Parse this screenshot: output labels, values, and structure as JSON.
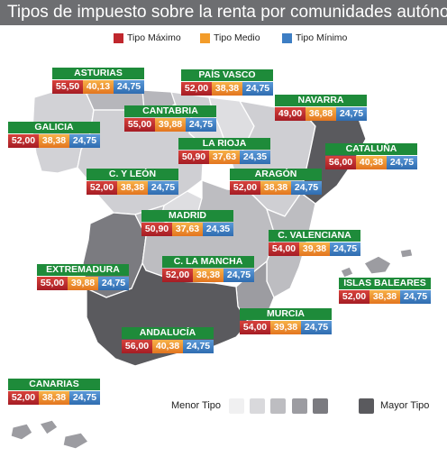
{
  "title": "Tipos de impuesto sobre la renta por comunidades autónomas",
  "legend": {
    "max_label": "Tipo Máximo",
    "med_label": "Tipo Medio",
    "min_label": "Tipo Mínimo"
  },
  "colors": {
    "max": "#c0272d",
    "med": "#f39c2a",
    "min": "#3d7ec4",
    "name_bg": "#1e8b3a"
  },
  "regions": [
    {
      "name": "ASTURIAS",
      "max": "55,50",
      "med": "40,13",
      "min": "24,75"
    },
    {
      "name": "PAÍS VASCO",
      "max": "52,00",
      "med": "38,38",
      "min": "24,75"
    },
    {
      "name": "CANTABRIA",
      "max": "55,00",
      "med": "39,88",
      "min": "24,75"
    },
    {
      "name": "NAVARRA",
      "max": "49,00",
      "med": "36,88",
      "min": "24,75"
    },
    {
      "name": "GALICIA",
      "max": "52,00",
      "med": "38,38",
      "min": "24,75"
    },
    {
      "name": "LA RIOJA",
      "max": "50,90",
      "med": "37,63",
      "min": "24,35"
    },
    {
      "name": "CATALUÑA",
      "max": "56,00",
      "med": "40,38",
      "min": "24,75"
    },
    {
      "name": "C. Y LEÓN",
      "max": "52,00",
      "med": "38,38",
      "min": "24,75"
    },
    {
      "name": "ARAGÓN",
      "max": "52,00",
      "med": "38,38",
      "min": "24,75"
    },
    {
      "name": "MADRID",
      "max": "50,90",
      "med": "37,63",
      "min": "24,35"
    },
    {
      "name": "C. VALENCIANA",
      "max": "54,00",
      "med": "39,38",
      "min": "24,75"
    },
    {
      "name": "C. LA MANCHA",
      "max": "52,00",
      "med": "38,38",
      "min": "24,75"
    },
    {
      "name": "EXTREMADURA",
      "max": "55,00",
      "med": "39,88",
      "min": "24,75"
    },
    {
      "name": "ISLAS BALEARES",
      "max": "52,00",
      "med": "38,38",
      "min": "24,75"
    },
    {
      "name": "MURCIA",
      "max": "54,00",
      "med": "39,38",
      "min": "24,75"
    },
    {
      "name": "ANDALUCÍA",
      "max": "56,00",
      "med": "40,38",
      "min": "24,75"
    },
    {
      "name": "CANARIAS",
      "max": "52,00",
      "med": "38,38",
      "min": "24,75"
    }
  ],
  "scale": {
    "low_label": "Menor Tipo",
    "high_label": "Mayor Tipo",
    "colors": [
      "#f0f0f1",
      "#d9d9dc",
      "#bdbdc1",
      "#9c9ca1",
      "#7b7b80",
      "#5a5a5e"
    ]
  }
}
